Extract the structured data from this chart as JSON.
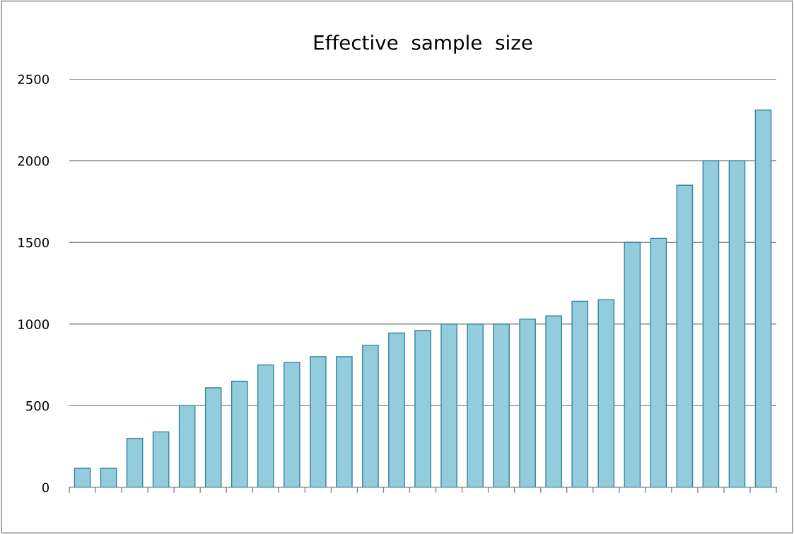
{
  "chart_data": {
    "type": "bar",
    "title": "Effective  sample  size",
    "categories": [
      null,
      null,
      null,
      null,
      null,
      null,
      null,
      null,
      null,
      null,
      null,
      null,
      null,
      null,
      null,
      null,
      null,
      null,
      null,
      null,
      null,
      null,
      null,
      null,
      null,
      null,
      null
    ],
    "values": [
      117,
      117,
      300,
      340,
      500,
      610,
      650,
      750,
      765,
      800,
      800,
      870,
      945,
      960,
      1000,
      1000,
      1000,
      1030,
      1050,
      1140,
      1150,
      1500,
      1525,
      1850,
      2000,
      2000,
      2310
    ],
    "color": "#93cddd",
    "ylim": [
      0,
      2500
    ],
    "yticks": [
      0,
      500,
      1000,
      1500,
      2000,
      2500
    ],
    "grid": "y"
  }
}
